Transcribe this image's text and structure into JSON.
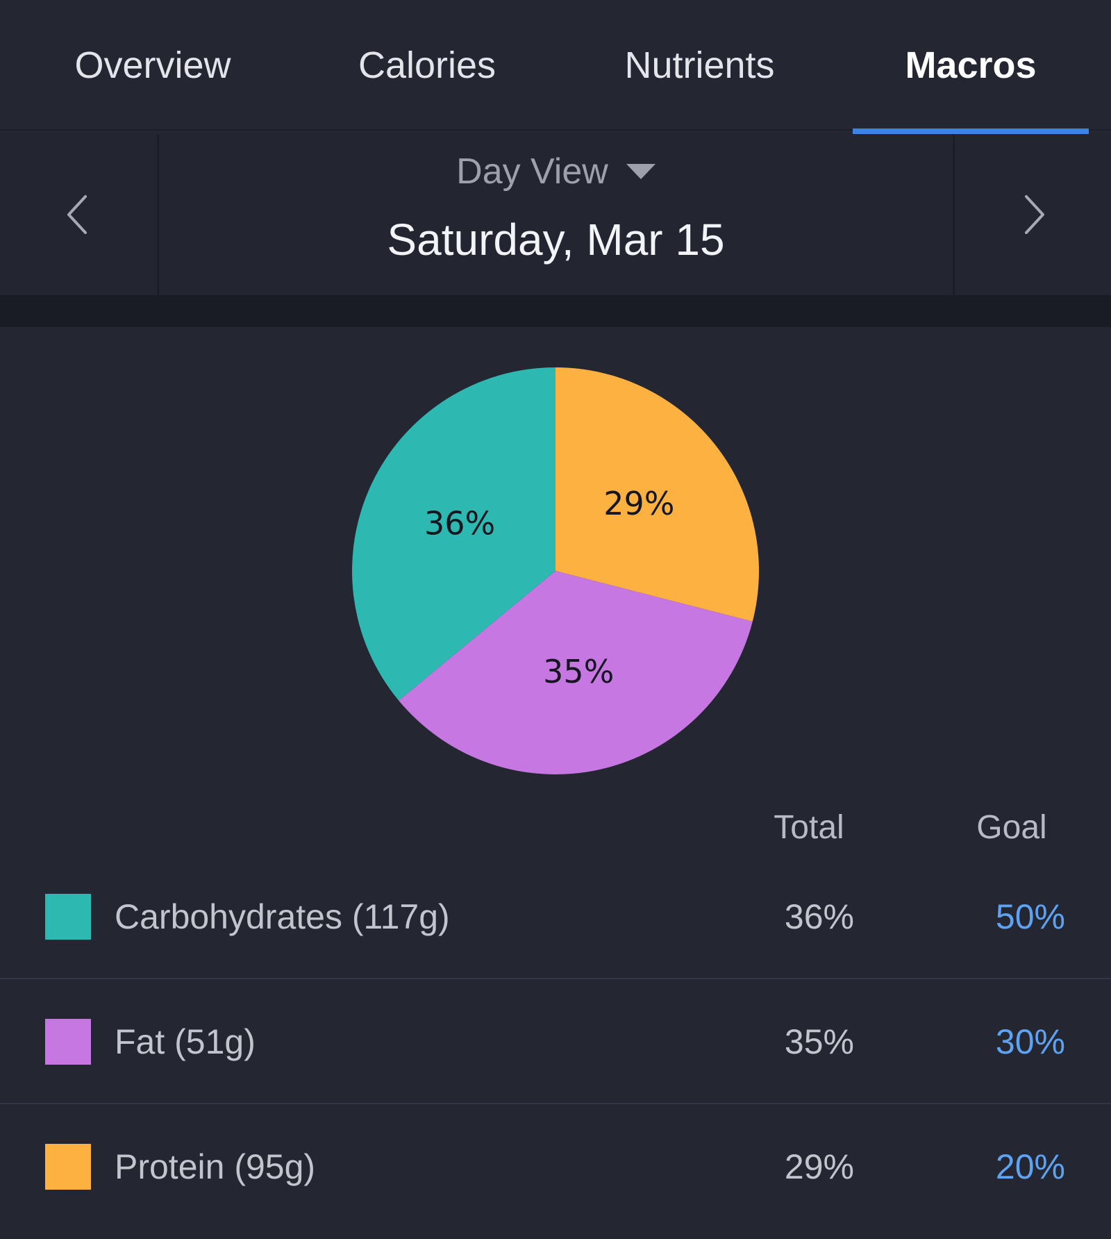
{
  "tabs": [
    {
      "label": "Overview",
      "active": false
    },
    {
      "label": "Calories",
      "active": false
    },
    {
      "label": "Nutrients",
      "active": false
    },
    {
      "label": "Macros",
      "active": true
    }
  ],
  "date_nav": {
    "view_label": "Day View",
    "date": "Saturday, Mar 15",
    "prev_icon": "chevron-left-icon",
    "next_icon": "chevron-right-icon",
    "dropdown_icon": "caret-down-icon"
  },
  "chart_data": {
    "type": "pie",
    "slices": [
      {
        "name": "Protein",
        "value": 29,
        "label": "29%",
        "color": "#fdb140"
      },
      {
        "name": "Fat",
        "value": 35,
        "label": "35%",
        "color": "#c677e2"
      },
      {
        "name": "Carbohydrates",
        "value": 36,
        "label": "36%",
        "color": "#2db8b1"
      }
    ],
    "start": "12 o'clock",
    "direction": "clockwise"
  },
  "table": {
    "headers": {
      "total": "Total",
      "goal": "Goal"
    },
    "rows": [
      {
        "label": "Carbohydrates (117g)",
        "total": "36%",
        "goal": "50%",
        "color": "#2db8b1"
      },
      {
        "label": "Fat (51g)",
        "total": "35%",
        "goal": "30%",
        "color": "#c677e2"
      },
      {
        "label": "Protein (95g)",
        "total": "29%",
        "goal": "20%",
        "color": "#fdb140"
      }
    ]
  },
  "colors": {
    "background": "#242632",
    "accent": "#3b84e3",
    "goal_text": "#5ea2f2"
  }
}
